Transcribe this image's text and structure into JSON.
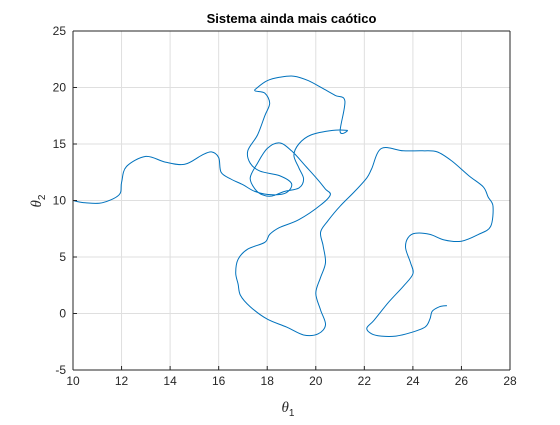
{
  "chart_data": {
    "type": "line",
    "title": "Sistema ainda mais caótico",
    "xlabel": {
      "symbol": "θ",
      "sub": "1"
    },
    "ylabel": {
      "symbol": "θ",
      "sub": "2"
    },
    "xlim": [
      10,
      28
    ],
    "ylim": [
      -5,
      25
    ],
    "xticks": [
      10,
      12,
      14,
      16,
      18,
      20,
      22,
      24,
      26,
      28
    ],
    "yticks": [
      -5,
      0,
      5,
      10,
      15,
      20,
      25
    ],
    "grid": true,
    "series": [
      {
        "color": "#0072bd",
        "x": [
          10.0,
          10.5,
          11.2,
          11.9,
          12.0,
          12.2,
          13.0,
          13.8,
          14.6,
          15.3,
          15.7,
          16.0,
          16.1,
          16.5,
          17.0,
          17.5,
          18.2,
          18.8,
          19.0,
          18.5,
          17.7,
          17.3,
          17.2,
          17.6,
          17.9,
          18.1,
          17.9,
          17.5,
          17.6,
          18.0,
          18.5,
          19.1,
          19.7,
          20.3,
          20.8,
          21.2,
          21.0,
          21.3,
          20.7,
          19.8,
          19.3,
          19.1,
          19.3,
          19.5,
          19.3,
          18.7,
          18.2,
          17.8,
          17.5,
          17.3,
          17.6,
          18.0,
          18.5,
          19.0,
          19.6,
          20.1,
          20.4,
          20.6,
          20.2,
          19.3,
          18.5,
          18.1,
          17.9,
          17.2,
          16.8,
          16.7,
          16.8,
          16.9,
          17.3,
          18.0,
          18.8,
          19.5,
          20.1,
          20.4,
          20.2,
          20.0,
          20.2,
          20.4,
          20.3,
          20.2,
          20.5,
          21.0,
          21.6,
          22.1,
          22.3,
          22.7,
          23.6,
          24.4,
          25.0,
          25.6,
          26.3,
          26.9,
          27.1,
          27.3,
          27.2,
          26.7,
          26.0,
          25.3,
          24.7,
          24.1,
          23.8,
          23.7,
          23.9,
          24.0,
          23.6,
          23.0,
          22.4,
          22.1,
          22.3,
          22.7,
          23.3,
          23.9,
          24.5,
          24.7,
          24.8,
          25.1,
          25.4
        ],
        "y": [
          10.0,
          9.8,
          9.8,
          10.5,
          11.6,
          13.0,
          13.9,
          13.4,
          13.2,
          14.0,
          14.3,
          13.8,
          12.5,
          11.9,
          11.4,
          10.8,
          10.5,
          10.7,
          11.5,
          12.2,
          12.6,
          13.3,
          14.4,
          15.8,
          17.5,
          18.6,
          19.5,
          19.7,
          20.0,
          20.6,
          20.9,
          21.0,
          20.6,
          19.9,
          19.3,
          18.8,
          16.1,
          16.2,
          16.2,
          15.8,
          15.0,
          14.0,
          12.9,
          11.9,
          11.1,
          10.8,
          10.4,
          10.5,
          11.0,
          12.0,
          13.3,
          14.6,
          15.1,
          14.4,
          13.0,
          11.8,
          11.0,
          10.5,
          9.6,
          8.3,
          7.6,
          7.0,
          6.3,
          5.7,
          4.8,
          3.6,
          2.6,
          1.6,
          0.6,
          -0.5,
          -1.2,
          -1.9,
          -1.8,
          -1.0,
          0.3,
          1.8,
          3.2,
          4.5,
          6.0,
          7.2,
          8.2,
          9.5,
          10.8,
          12.0,
          12.8,
          14.6,
          14.4,
          14.4,
          14.3,
          13.5,
          12.2,
          11.2,
          10.3,
          9.5,
          7.7,
          7.0,
          6.4,
          6.5,
          7.0,
          7.1,
          6.7,
          5.8,
          4.5,
          3.5,
          2.4,
          1.0,
          -0.6,
          -1.3,
          -1.8,
          -2.0,
          -2.0,
          -1.7,
          -1.2,
          -0.5,
          0.2,
          0.6,
          0.7
        ]
      }
    ]
  }
}
